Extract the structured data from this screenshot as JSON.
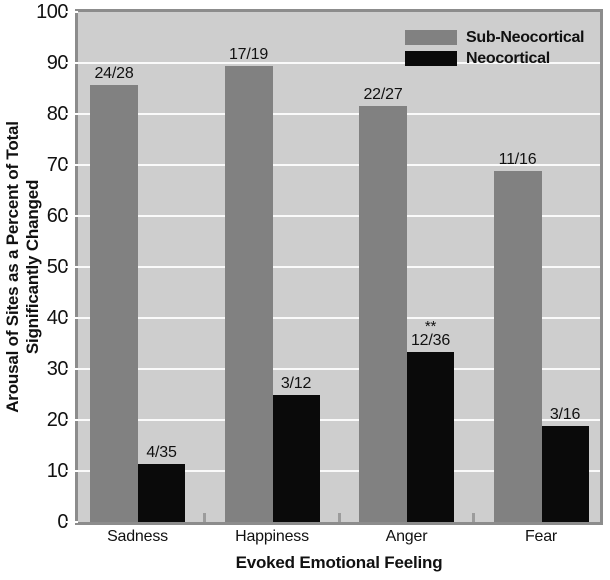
{
  "chart_data": {
    "type": "bar",
    "title": "",
    "xlabel": "Evoked Emotional Feeling",
    "ylabel": "Arousal of Sites as a Percent of Total Significantly Changed",
    "ylabel_line1": "Arousal of Sites as a Percent of Total",
    "ylabel_line2": "Significantly Changed",
    "ylim": [
      0,
      100
    ],
    "ytick_interval": 10,
    "yticks": [
      0,
      10,
      20,
      30,
      40,
      50,
      60,
      70,
      80,
      90,
      100
    ],
    "grid": "horizontal",
    "legend_position": "top-right-inside",
    "categories": [
      "Sadness",
      "Happiness",
      "Anger",
      "Fear"
    ],
    "series": [
      {
        "name": "Sub-Neocortical",
        "color": "#818181",
        "values": [
          85.7,
          89.5,
          81.5,
          68.8
        ],
        "bar_labels": [
          "24/28",
          "17/19",
          "22/27",
          "11/16"
        ],
        "annotations": [
          "",
          "",
          "",
          ""
        ]
      },
      {
        "name": "Neocortical",
        "color": "#0a0a0a",
        "values": [
          11.4,
          25.0,
          33.3,
          18.8
        ],
        "bar_labels": [
          "4/35",
          "3/12",
          "12/36",
          "3/16"
        ],
        "annotations": [
          "",
          "",
          "**",
          ""
        ]
      }
    ]
  },
  "colors": {
    "page_bg": "#ffffff",
    "plot_bg": "#cecece",
    "gridline": "#fafafa",
    "frame": "#8c8c8c",
    "minor_tick": "#9c9c9c",
    "text": "#111111"
  }
}
